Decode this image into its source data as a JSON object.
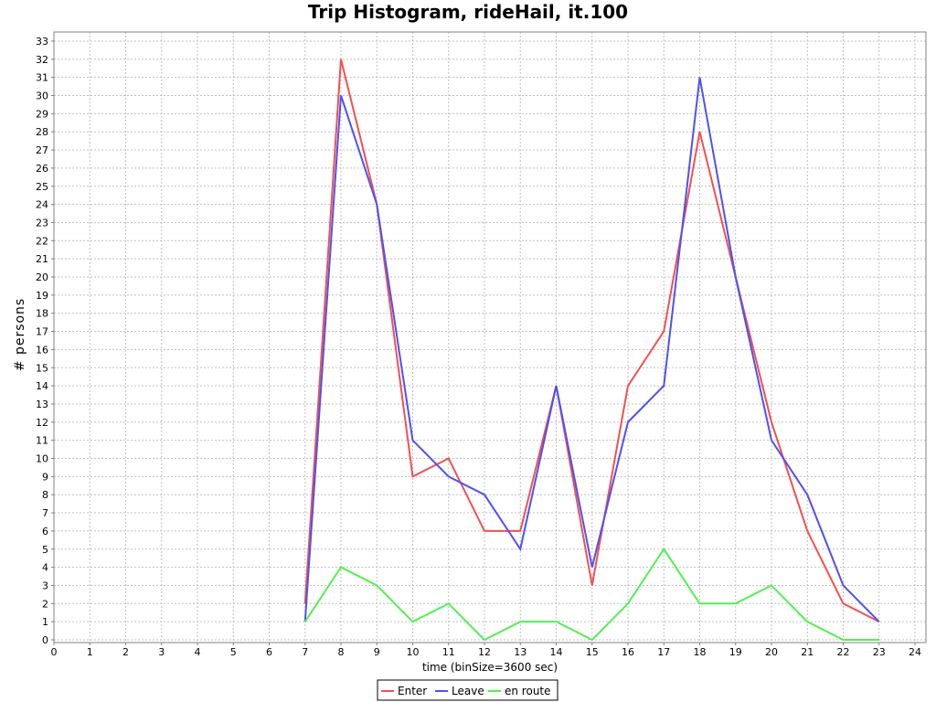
{
  "chart_data": {
    "type": "line",
    "title": "Trip Histogram, rideHail, it.100",
    "xlabel": "time (binSize=3600 sec)",
    "ylabel": "# persons",
    "xlim": [
      0,
      24
    ],
    "ylim": [
      0,
      33.7
    ],
    "x_ticks": [
      0,
      1,
      2,
      3,
      4,
      5,
      6,
      7,
      8,
      9,
      10,
      11,
      12,
      13,
      14,
      15,
      16,
      17,
      18,
      19,
      20,
      21,
      22,
      23,
      24
    ],
    "y_ticks": [
      0,
      1,
      2,
      3,
      4,
      5,
      6,
      7,
      8,
      9,
      10,
      11,
      12,
      13,
      14,
      15,
      16,
      17,
      18,
      19,
      20,
      21,
      22,
      23,
      24,
      25,
      26,
      27,
      28,
      29,
      30,
      31,
      32,
      33
    ],
    "grid": true,
    "legend_position": "bottom",
    "x": [
      7,
      8,
      9,
      10,
      11,
      12,
      13,
      14,
      15,
      16,
      17,
      18,
      19,
      20,
      21,
      22,
      23
    ],
    "series": [
      {
        "name": "Enter",
        "color": "#f25050",
        "values": [
          2,
          32,
          24,
          9,
          10,
          6,
          6,
          14,
          3,
          14,
          17,
          28,
          20,
          12,
          6,
          2,
          1
        ]
      },
      {
        "name": "Leave",
        "color": "#5050f2",
        "values": [
          1,
          30,
          24,
          11,
          9,
          8,
          5,
          14,
          4,
          12,
          14,
          31,
          20,
          11,
          8,
          3,
          1
        ]
      },
      {
        "name": "en route",
        "color": "#50f250",
        "values": [
          1,
          4,
          3,
          1,
          2,
          0,
          1,
          1,
          0,
          2,
          5,
          2,
          2,
          3,
          1,
          0,
          0
        ]
      }
    ]
  }
}
